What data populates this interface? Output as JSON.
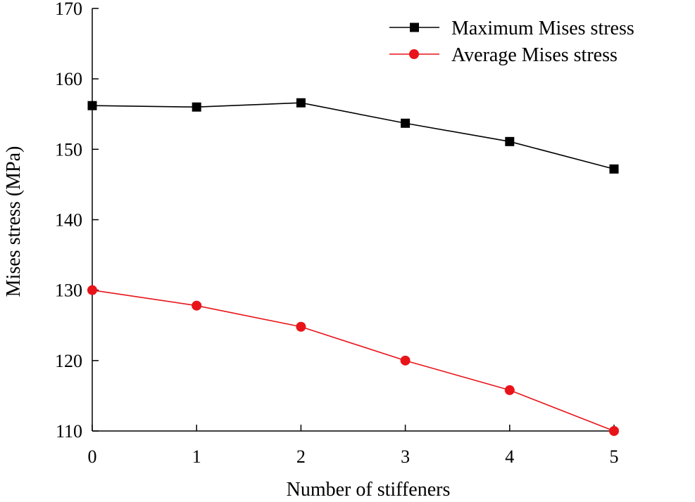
{
  "chart_data": {
    "type": "line",
    "title": "",
    "xlabel": "Number of stiffeners",
    "ylabel": "Mises stress (MPa)",
    "x": [
      0,
      1,
      2,
      3,
      4,
      5
    ],
    "xlim": [
      0,
      5
    ],
    "ylim": [
      110,
      170
    ],
    "xticks": [
      "0",
      "1",
      "2",
      "3",
      "4",
      "5"
    ],
    "yticks": [
      "110",
      "120",
      "130",
      "140",
      "150",
      "160",
      "170"
    ],
    "grid": false,
    "legend_position": "top-right",
    "series": [
      {
        "name": "Maximum Mises stress",
        "marker": "square",
        "color": "#000000",
        "values": [
          156.2,
          156.0,
          156.6,
          153.7,
          151.1,
          147.2
        ]
      },
      {
        "name": "Average Mises stress",
        "marker": "circle",
        "color": "#e8141a",
        "values": [
          130.0,
          127.8,
          124.8,
          120.0,
          115.8,
          110.0
        ]
      }
    ]
  }
}
